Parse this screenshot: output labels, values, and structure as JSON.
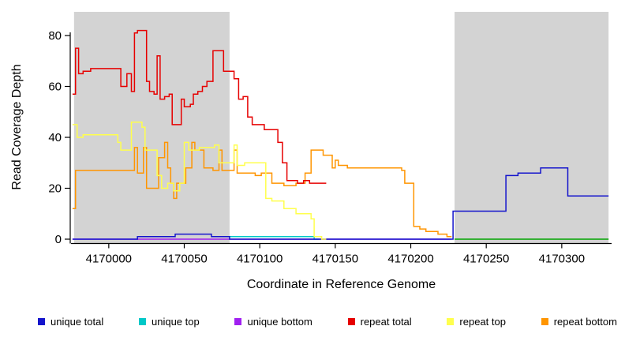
{
  "chart_data": {
    "type": "line",
    "subtype": "step",
    "title": "",
    "xlabel": "Coordinate in Reference Genome",
    "ylabel": "Read Coverage Depth",
    "xlim": [
      4169975,
      4170333
    ],
    "ylim": [
      0,
      85
    ],
    "xticks": [
      4170000,
      4170050,
      4170100,
      4170150,
      4170200,
      4170250,
      4170300
    ],
    "yticks": [
      0,
      20,
      40,
      60,
      80
    ],
    "grid": false,
    "shaded_regions": [
      {
        "from": 4169977,
        "to": 4170080,
        "color": "#d3d3d3"
      },
      {
        "from": 4170229,
        "to": 4170331,
        "color": "#d3d3d3"
      }
    ],
    "series": [
      {
        "name": "unique bottom",
        "color": "#a020f0",
        "points": [
          [
            4169976,
            0
          ],
          [
            4170227,
            0
          ]
        ]
      },
      {
        "name": "green baseline",
        "color": "#00a300",
        "points": [
          [
            4170229,
            0
          ],
          [
            4170331,
            0
          ]
        ]
      },
      {
        "name": "unique top",
        "color": "#00c8c8",
        "points": [
          [
            4170079,
            1
          ],
          [
            4170136,
            0
          ],
          [
            4170139,
            0
          ]
        ]
      },
      {
        "name": "unique total",
        "color": "#1414cc",
        "points": [
          [
            4169976,
            0
          ],
          [
            4170019,
            1
          ],
          [
            4170044,
            2
          ],
          [
            4170068,
            1
          ],
          [
            4170080,
            0
          ],
          [
            4170228,
            11
          ],
          [
            4170263,
            25
          ],
          [
            4170271,
            26
          ],
          [
            4170286,
            28
          ],
          [
            4170304,
            17
          ],
          [
            4170331,
            17
          ]
        ]
      },
      {
        "name": "repeat bottom",
        "color": "#ff9500",
        "points": [
          [
            4169976,
            12
          ],
          [
            4169978,
            27
          ],
          [
            4170017,
            36
          ],
          [
            4170019,
            26
          ],
          [
            4170023,
            36
          ],
          [
            4170025,
            20
          ],
          [
            4170033,
            32
          ],
          [
            4170037,
            38
          ],
          [
            4170039,
            28
          ],
          [
            4170041,
            22
          ],
          [
            4170043,
            16
          ],
          [
            4170045,
            22
          ],
          [
            4170051,
            28
          ],
          [
            4170055,
            38
          ],
          [
            4170057,
            35
          ],
          [
            4170063,
            28
          ],
          [
            4170069,
            27
          ],
          [
            4170073,
            35
          ],
          [
            4170075,
            27
          ],
          [
            4170083,
            35
          ],
          [
            4170085,
            26
          ],
          [
            4170097,
            25
          ],
          [
            4170101,
            26
          ],
          [
            4170108,
            22
          ],
          [
            4170116,
            21
          ],
          [
            4170124,
            22
          ],
          [
            4170130,
            26
          ],
          [
            4170134,
            35
          ],
          [
            4170142,
            33
          ],
          [
            4170148,
            28
          ],
          [
            4170150,
            31
          ],
          [
            4170152,
            29
          ],
          [
            4170158,
            28
          ],
          [
            4170194,
            27
          ],
          [
            4170196,
            22
          ],
          [
            4170202,
            5
          ],
          [
            4170206,
            4
          ],
          [
            4170210,
            3
          ],
          [
            4170218,
            2
          ],
          [
            4170224,
            1
          ],
          [
            4170227,
            1
          ]
        ]
      },
      {
        "name": "repeat top",
        "color": "#ffff4d",
        "points": [
          [
            4169976,
            45
          ],
          [
            4169979,
            40
          ],
          [
            4169983,
            41
          ],
          [
            4170006,
            38
          ],
          [
            4170008,
            35
          ],
          [
            4170015,
            46
          ],
          [
            4170022,
            44
          ],
          [
            4170024,
            35
          ],
          [
            4170032,
            25
          ],
          [
            4170035,
            20
          ],
          [
            4170039,
            22
          ],
          [
            4170043,
            19
          ],
          [
            4170047,
            22
          ],
          [
            4170050,
            38
          ],
          [
            4170053,
            35
          ],
          [
            4170060,
            36
          ],
          [
            4170070,
            37
          ],
          [
            4170073,
            30
          ],
          [
            4170083,
            37
          ],
          [
            4170085,
            29
          ],
          [
            4170090,
            30
          ],
          [
            4170104,
            16
          ],
          [
            4170108,
            15
          ],
          [
            4170116,
            12
          ],
          [
            4170124,
            10
          ],
          [
            4170134,
            8
          ],
          [
            4170136,
            1
          ],
          [
            4170141,
            0
          ],
          [
            4170144,
            0
          ]
        ]
      },
      {
        "name": "repeat total",
        "color": "#e60000",
        "points": [
          [
            4169976,
            57
          ],
          [
            4169978,
            75
          ],
          [
            4169980,
            65
          ],
          [
            4169983,
            66
          ],
          [
            4169988,
            67
          ],
          [
            4170008,
            60
          ],
          [
            4170012,
            65
          ],
          [
            4170015,
            58
          ],
          [
            4170017,
            81
          ],
          [
            4170019,
            82
          ],
          [
            4170025,
            62
          ],
          [
            4170027,
            58
          ],
          [
            4170030,
            57
          ],
          [
            4170032,
            72
          ],
          [
            4170034,
            55
          ],
          [
            4170037,
            56
          ],
          [
            4170040,
            57
          ],
          [
            4170042,
            45
          ],
          [
            4170048,
            55
          ],
          [
            4170050,
            52
          ],
          [
            4170054,
            53
          ],
          [
            4170056,
            57
          ],
          [
            4170059,
            58
          ],
          [
            4170062,
            60
          ],
          [
            4170065,
            62
          ],
          [
            4170069,
            74
          ],
          [
            4170076,
            66
          ],
          [
            4170083,
            63
          ],
          [
            4170086,
            55
          ],
          [
            4170089,
            56
          ],
          [
            4170092,
            48
          ],
          [
            4170095,
            45
          ],
          [
            4170103,
            43
          ],
          [
            4170112,
            38
          ],
          [
            4170115,
            30
          ],
          [
            4170118,
            23
          ],
          [
            4170125,
            22
          ],
          [
            4170129,
            23
          ],
          [
            4170133,
            22
          ],
          [
            4170144,
            22
          ]
        ]
      }
    ],
    "legend": {
      "position": "bottom",
      "entries": [
        {
          "label": "unique total",
          "color": "#1414cc"
        },
        {
          "label": "unique top",
          "color": "#00c8c8"
        },
        {
          "label": "unique bottom",
          "color": "#a020f0"
        },
        {
          "label": "repeat total",
          "color": "#e60000"
        },
        {
          "label": "repeat top",
          "color": "#ffff4d"
        },
        {
          "label": "repeat bottom",
          "color": "#ff9500"
        }
      ]
    }
  }
}
